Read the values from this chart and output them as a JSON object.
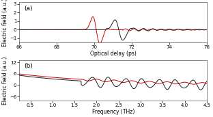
{
  "panel_a": {
    "xlabel": "Optical delay (ps)",
    "ylabel": "Electric field (a.u.)",
    "label": "(a)",
    "xlim": [
      66,
      76
    ],
    "ylim": [
      -1.5,
      3.2
    ],
    "yticks": [
      -1,
      0,
      1,
      2,
      3
    ],
    "xticks": [
      66,
      68,
      70,
      72,
      74,
      76
    ],
    "color_red": "#cc0000",
    "color_black": "#1a1a1a"
  },
  "panel_b": {
    "xlabel": "Frequency (THz)",
    "ylabel": "Electric field (a.u.)",
    "label": "(b)",
    "xlim": [
      0.25,
      4.5
    ],
    "ylim": [
      -8.0,
      13.0
    ],
    "yticks": [
      -6,
      0,
      6,
      12
    ],
    "xticks": [
      0.5,
      1.0,
      1.5,
      2.0,
      2.5,
      3.0,
      3.5,
      4.0,
      4.5
    ],
    "color_red": "#cc0000",
    "color_black": "#1a1a1a"
  },
  "fig_bg": "#ffffff",
  "linewidth": 0.7
}
